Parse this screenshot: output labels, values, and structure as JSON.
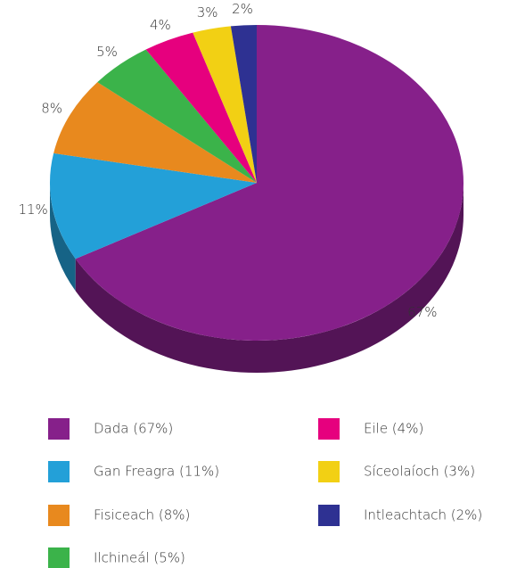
{
  "chart_data": {
    "type": "pie",
    "categories": [
      "Dada (67%)",
      "Gan Freagra (11%)",
      "Fisiceach (8%)",
      "Ilchineál (5%)",
      "Eile (4%)",
      "Síceolaíoch (3%)",
      "Intleachtach (2%)"
    ],
    "values": [
      67,
      11,
      8,
      5,
      4,
      3,
      2
    ],
    "value_labels": [
      "67%",
      "11%",
      "8%",
      "5%",
      "4%",
      "3%",
      "2%"
    ],
    "colors": [
      "#86208a",
      "#23a0d8",
      "#e8891e",
      "#3bb34a",
      "#e6007e",
      "#f2d014",
      "#2e3192"
    ]
  }
}
